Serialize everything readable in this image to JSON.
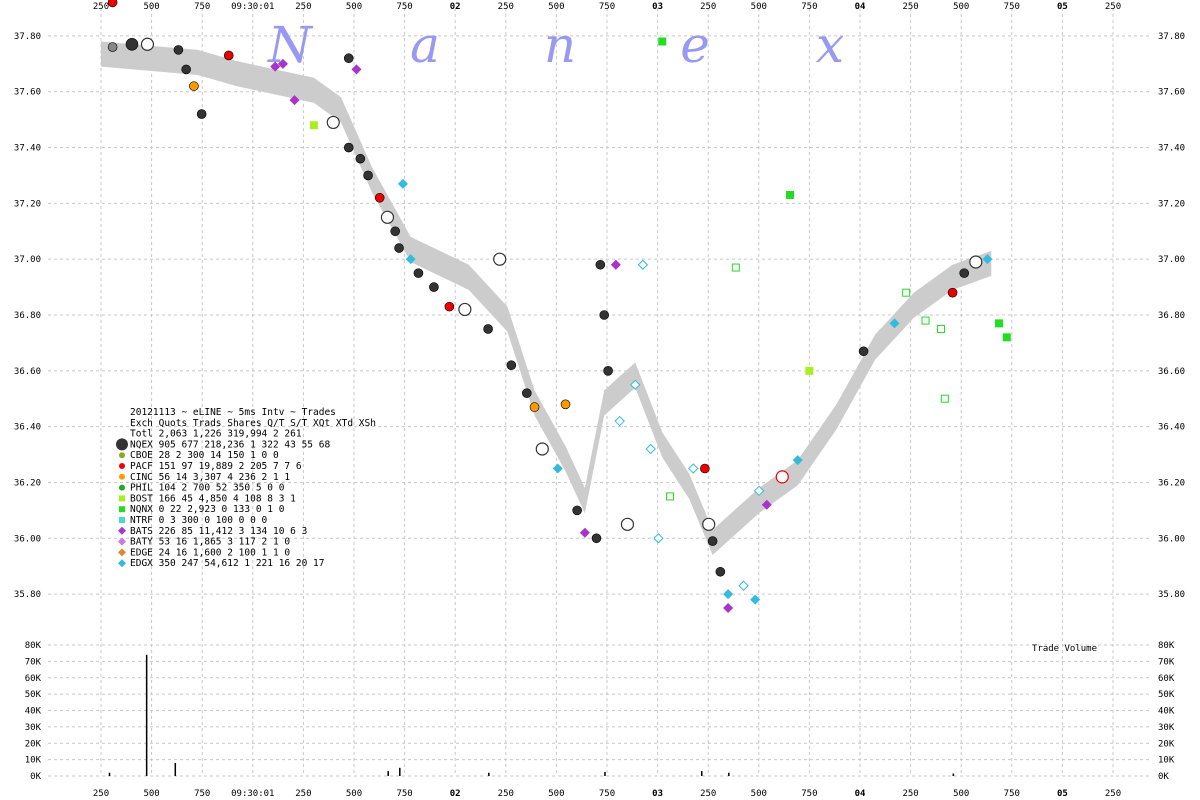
{
  "chart_data": {
    "type": "scatter",
    "watermark": [
      "N",
      "a",
      "n",
      "e",
      "x"
    ],
    "time_ticks": [
      "250",
      "500",
      "750",
      "09:30:01",
      "250",
      "500",
      "750",
      "02",
      "250",
      "500",
      "750",
      "03",
      "250",
      "500",
      "750",
      "04",
      "250",
      "500",
      "750",
      "05",
      "250"
    ],
    "bold_ticks": [
      "02",
      "03",
      "04",
      "05"
    ],
    "price_ticks": [
      "37.80",
      "37.60",
      "37.40",
      "37.20",
      "37.00",
      "36.80",
      "36.60",
      "36.40",
      "36.20",
      "36.00",
      "35.80"
    ],
    "ylim": [
      35.7,
      37.9
    ],
    "volume_ticks": [
      "80K",
      "70K",
      "60K",
      "50K",
      "40K",
      "30K",
      "20K",
      "10K",
      "0K"
    ],
    "volume_label": "Trade Volume",
    "legend": {
      "title": "20121113 ~ eLINE ~ 5ms Intv ~ Trades",
      "header": "Exch Quots Trads  Shares  Q/T  S/T  XQt XTd XSh",
      "total": "Totl 2,063 1,226 319,994    2   261",
      "rows": [
        {
          "text": "NQEX   905   677 218,236   1  322   43  55  68",
          "color": "#333333",
          "marker": "circle-big"
        },
        {
          "text": "CBOE    28     2     300  14  150    1   0   0",
          "color": "#88aa22",
          "marker": "circle"
        },
        {
          "text": "PACF   151    97  19,889   2  205    7   7   6",
          "color": "#ee0000",
          "marker": "circle"
        },
        {
          "text": "CINC    56    14   3,307   4  236    2   1   1",
          "color": "#ff9900",
          "marker": "circle"
        },
        {
          "text": "PHIL   104     2     700  52  350    5   0   0",
          "color": "#22aa22",
          "marker": "circle"
        },
        {
          "text": "BOST   166    45   4,850   4  108    8   3   1",
          "color": "#aaee22",
          "marker": "square"
        },
        {
          "text": "NQNX     0    22   2,923   0  133    0   1   0",
          "color": "#22dd22",
          "marker": "square"
        },
        {
          "text": "NTRF     0     3     300   0  100    0   0   0",
          "color": "#44ddcc",
          "marker": "square"
        },
        {
          "text": "BATS   226    85  11,412   3  134   10   6   3",
          "color": "#aa33cc",
          "marker": "diamond"
        },
        {
          "text": "BATY    53    16   1,865   3  117    2   1   0",
          "color": "#cc77ee",
          "marker": "diamond"
        },
        {
          "text": "EDGE    24    16   1,600   2  100    1   1   0",
          "color": "#dd8833",
          "marker": "diamond"
        },
        {
          "text": "EDGX   350   247  54,612   1  221   16  20  17",
          "color": "#33bbdd",
          "marker": "diamond"
        }
      ]
    },
    "trades": [
      {
        "x": 0.03,
        "y": 37.92,
        "c": "#ee0000",
        "m": "circle"
      },
      {
        "x": 0.03,
        "y": 37.76,
        "c": "#888888",
        "m": "circle"
      },
      {
        "x": 0.08,
        "y": 37.77,
        "c": "#333333",
        "m": "circle-big"
      },
      {
        "x": 0.12,
        "y": 37.77,
        "c": "#333333",
        "m": "circle-open"
      },
      {
        "x": 0.2,
        "y": 37.75,
        "c": "#333333",
        "m": "circle"
      },
      {
        "x": 0.22,
        "y": 37.68,
        "c": "#333333",
        "m": "circle"
      },
      {
        "x": 0.24,
        "y": 37.62,
        "c": "#ff9900",
        "m": "circle"
      },
      {
        "x": 0.26,
        "y": 37.52,
        "c": "#333333",
        "m": "circle"
      },
      {
        "x": 0.33,
        "y": 37.73,
        "c": "#ee0000",
        "m": "circle"
      },
      {
        "x": 0.45,
        "y": 37.69,
        "c": "#aa33cc",
        "m": "diamond"
      },
      {
        "x": 0.47,
        "y": 37.7,
        "c": "#aa33cc",
        "m": "diamond"
      },
      {
        "x": 0.5,
        "y": 37.57,
        "c": "#aa33cc",
        "m": "diamond"
      },
      {
        "x": 0.55,
        "y": 37.48,
        "c": "#aaee22",
        "m": "square"
      },
      {
        "x": 0.6,
        "y": 37.49,
        "c": "#333333",
        "m": "circle-open"
      },
      {
        "x": 0.64,
        "y": 37.72,
        "c": "#333333",
        "m": "circle"
      },
      {
        "x": 0.66,
        "y": 37.68,
        "c": "#aa33cc",
        "m": "diamond"
      },
      {
        "x": 0.64,
        "y": 37.4,
        "c": "#333333",
        "m": "circle"
      },
      {
        "x": 0.67,
        "y": 37.36,
        "c": "#333333",
        "m": "circle"
      },
      {
        "x": 0.69,
        "y": 37.3,
        "c": "#333333",
        "m": "circle"
      },
      {
        "x": 0.72,
        "y": 37.22,
        "c": "#ee0000",
        "m": "circle"
      },
      {
        "x": 0.74,
        "y": 37.15,
        "c": "#333333",
        "m": "circle-open"
      },
      {
        "x": 0.76,
        "y": 37.1,
        "c": "#333333",
        "m": "circle"
      },
      {
        "x": 0.78,
        "y": 37.27,
        "c": "#33bbdd",
        "m": "diamond"
      },
      {
        "x": 0.77,
        "y": 37.04,
        "c": "#333333",
        "m": "circle"
      },
      {
        "x": 0.8,
        "y": 37.0,
        "c": "#33bbdd",
        "m": "diamond"
      },
      {
        "x": 0.82,
        "y": 36.95,
        "c": "#333333",
        "m": "circle"
      },
      {
        "x": 0.86,
        "y": 36.9,
        "c": "#333333",
        "m": "circle"
      },
      {
        "x": 0.9,
        "y": 36.83,
        "c": "#ee0000",
        "m": "circle"
      },
      {
        "x": 0.94,
        "y": 36.82,
        "c": "#333333",
        "m": "circle-open"
      },
      {
        "x": 1.0,
        "y": 36.75,
        "c": "#333333",
        "m": "circle"
      },
      {
        "x": 1.03,
        "y": 37.0,
        "c": "#333333",
        "m": "circle-open"
      },
      {
        "x": 1.06,
        "y": 36.62,
        "c": "#333333",
        "m": "circle"
      },
      {
        "x": 1.1,
        "y": 36.52,
        "c": "#333333",
        "m": "circle"
      },
      {
        "x": 1.12,
        "y": 36.47,
        "c": "#ff9900",
        "m": "circle"
      },
      {
        "x": 1.14,
        "y": 36.32,
        "c": "#333333",
        "m": "circle-open"
      },
      {
        "x": 1.18,
        "y": 36.25,
        "c": "#33bbdd",
        "m": "diamond"
      },
      {
        "x": 1.2,
        "y": 36.48,
        "c": "#ff9900",
        "m": "circle"
      },
      {
        "x": 1.23,
        "y": 36.1,
        "c": "#333333",
        "m": "circle"
      },
      {
        "x": 1.25,
        "y": 36.02,
        "c": "#aa33cc",
        "m": "diamond"
      },
      {
        "x": 1.28,
        "y": 36.0,
        "c": "#333333",
        "m": "circle"
      },
      {
        "x": 1.29,
        "y": 36.98,
        "c": "#333333",
        "m": "circle"
      },
      {
        "x": 1.3,
        "y": 36.8,
        "c": "#333333",
        "m": "circle"
      },
      {
        "x": 1.31,
        "y": 36.6,
        "c": "#333333",
        "m": "circle"
      },
      {
        "x": 1.33,
        "y": 36.98,
        "c": "#aa33cc",
        "m": "diamond"
      },
      {
        "x": 1.34,
        "y": 36.42,
        "c": "#33bbdd",
        "m": "diamond-open"
      },
      {
        "x": 1.36,
        "y": 36.05,
        "c": "#333333",
        "m": "circle-open"
      },
      {
        "x": 1.38,
        "y": 36.55,
        "c": "#33bbdd",
        "m": "diamond-open"
      },
      {
        "x": 1.4,
        "y": 36.98,
        "c": "#33bbdd",
        "m": "diamond-open"
      },
      {
        "x": 1.42,
        "y": 36.32,
        "c": "#33bbdd",
        "m": "diamond-open"
      },
      {
        "x": 1.44,
        "y": 36.0,
        "c": "#33bbdd",
        "m": "diamond-open"
      },
      {
        "x": 1.47,
        "y": 36.15,
        "c": "#22dd22",
        "m": "square-open"
      },
      {
        "x": 1.45,
        "y": 37.78,
        "c": "#22dd22",
        "m": "square"
      },
      {
        "x": 1.53,
        "y": 36.25,
        "c": "#33bbdd",
        "m": "diamond-open"
      },
      {
        "x": 1.56,
        "y": 36.25,
        "c": "#ee0000",
        "m": "circle"
      },
      {
        "x": 1.57,
        "y": 36.05,
        "c": "#333333",
        "m": "circle-open"
      },
      {
        "x": 1.58,
        "y": 35.99,
        "c": "#333333",
        "m": "circle"
      },
      {
        "x": 1.6,
        "y": 35.88,
        "c": "#333333",
        "m": "circle"
      },
      {
        "x": 1.62,
        "y": 35.75,
        "c": "#aa33cc",
        "m": "diamond"
      },
      {
        "x": 1.62,
        "y": 35.8,
        "c": "#33bbdd",
        "m": "diamond"
      },
      {
        "x": 1.66,
        "y": 35.83,
        "c": "#33bbdd",
        "m": "diamond-open"
      },
      {
        "x": 1.69,
        "y": 35.78,
        "c": "#33bbdd",
        "m": "diamond"
      },
      {
        "x": 1.64,
        "y": 36.97,
        "c": "#22dd22",
        "m": "square-open"
      },
      {
        "x": 1.7,
        "y": 36.17,
        "c": "#33bbdd",
        "m": "diamond-open"
      },
      {
        "x": 1.72,
        "y": 36.12,
        "c": "#aa33cc",
        "m": "diamond"
      },
      {
        "x": 1.76,
        "y": 36.22,
        "c": "#ee0000",
        "m": "circle-open"
      },
      {
        "x": 1.78,
        "y": 37.23,
        "c": "#22dd22",
        "m": "square"
      },
      {
        "x": 1.8,
        "y": 36.28,
        "c": "#33bbdd",
        "m": "diamond"
      },
      {
        "x": 1.83,
        "y": 36.6,
        "c": "#aaee22",
        "m": "square"
      },
      {
        "x": 1.97,
        "y": 36.67,
        "c": "#333333",
        "m": "circle"
      },
      {
        "x": 2.05,
        "y": 36.77,
        "c": "#33bbdd",
        "m": "diamond"
      },
      {
        "x": 2.08,
        "y": 36.88,
        "c": "#22dd22",
        "m": "square-open"
      },
      {
        "x": 2.13,
        "y": 36.78,
        "c": "#22dd22",
        "m": "square-open"
      },
      {
        "x": 2.17,
        "y": 36.75,
        "c": "#22dd22",
        "m": "square-open"
      },
      {
        "x": 2.18,
        "y": 36.5,
        "c": "#22dd22",
        "m": "square-open"
      },
      {
        "x": 2.2,
        "y": 36.88,
        "c": "#ee0000",
        "m": "circle"
      },
      {
        "x": 2.23,
        "y": 36.95,
        "c": "#333333",
        "m": "circle"
      },
      {
        "x": 2.26,
        "y": 36.99,
        "c": "#333333",
        "m": "circle-open"
      },
      {
        "x": 2.29,
        "y": 37.0,
        "c": "#33bbdd",
        "m": "diamond"
      },
      {
        "x": 2.32,
        "y": 36.77,
        "c": "#22dd22",
        "m": "square"
      },
      {
        "x": 2.34,
        "y": 36.72,
        "c": "#22dd22",
        "m": "square"
      }
    ],
    "volume_bars": [
      {
        "x": 0.116,
        "v": 74000
      },
      {
        "x": 0.19,
        "v": 8000
      },
      {
        "x": 0.02,
        "v": 2000
      },
      {
        "x": 0.77,
        "v": 5000
      },
      {
        "x": 0.74,
        "v": 3000
      },
      {
        "x": 1.0,
        "v": 2000
      },
      {
        "x": 1.3,
        "v": 2500
      },
      {
        "x": 1.55,
        "v": 3000
      },
      {
        "x": 1.62,
        "v": 2000
      },
      {
        "x": 2.2,
        "v": 1500
      }
    ]
  }
}
